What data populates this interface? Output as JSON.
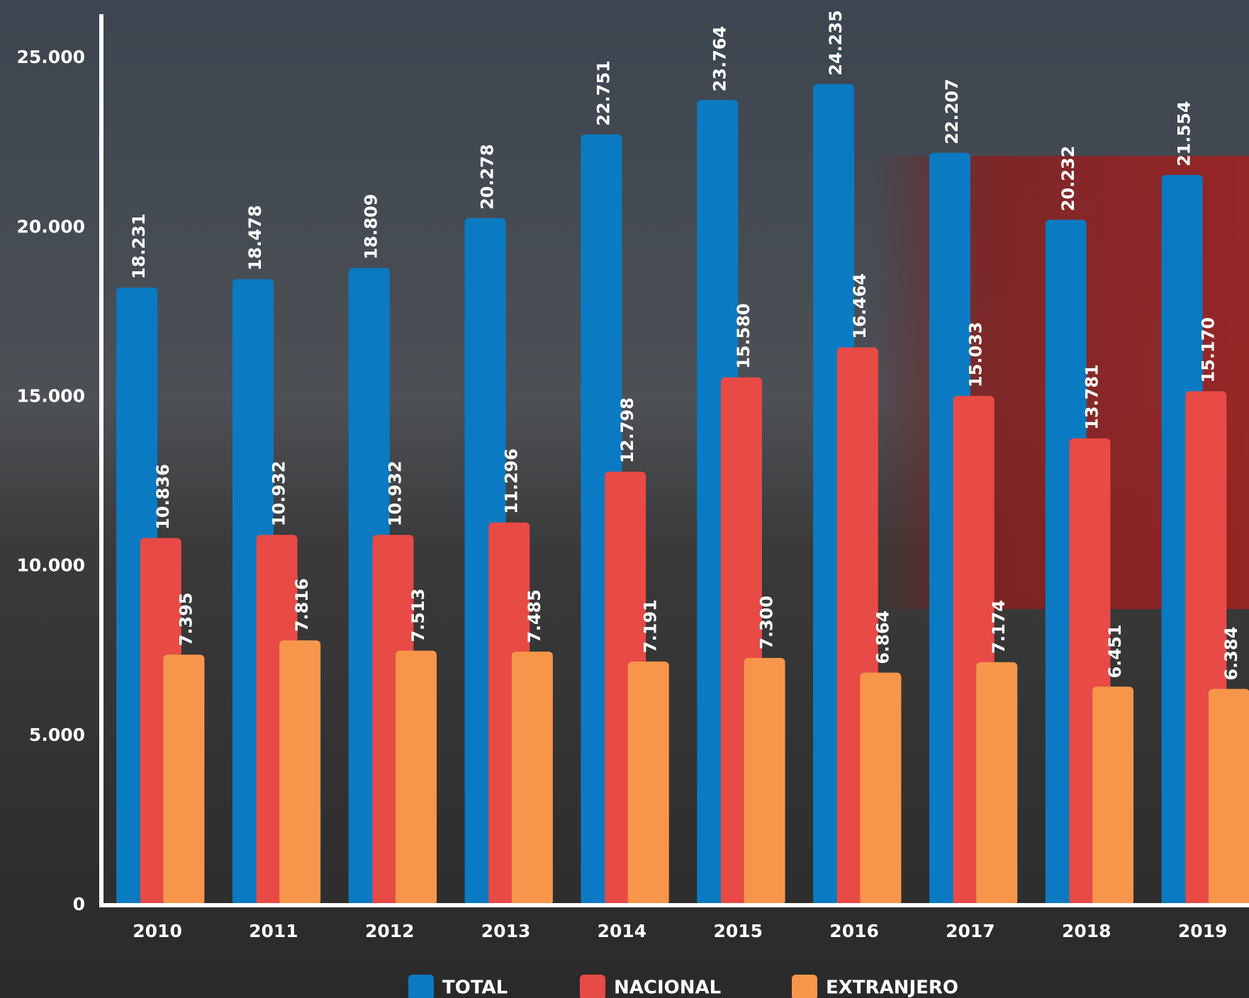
{
  "chart_data": {
    "type": "bar",
    "categories": [
      "2010",
      "2011",
      "2012",
      "2013",
      "2014",
      "2015",
      "2016",
      "2017",
      "2018",
      "2019"
    ],
    "series": [
      {
        "name": "TOTAL",
        "color": "#0a7bc2",
        "values": [
          18231,
          18478,
          18809,
          20278,
          22751,
          23764,
          24235,
          22207,
          20232,
          21554
        ],
        "value_labels": [
          "18.231",
          "18.478",
          "18.809",
          "20.278",
          "22.751",
          "23.764",
          "24.235",
          "22.207",
          "20.232",
          "21.554"
        ]
      },
      {
        "name": "NACIONAL",
        "color": "#e84a46",
        "values": [
          10836,
          10932,
          10932,
          11296,
          12798,
          15580,
          16464,
          15033,
          13781,
          15170
        ],
        "value_labels": [
          "10.836",
          "10.932",
          "10.932",
          "11.296",
          "12.798",
          "15.580",
          "16.464",
          "15.033",
          "13.781",
          "15.170"
        ]
      },
      {
        "name": "EXTRANJERO",
        "color": "#f7964b",
        "values": [
          7395,
          7816,
          7513,
          7485,
          7191,
          7300,
          6864,
          7174,
          6451,
          6384
        ],
        "value_labels": [
          "7.395",
          "7.816",
          "7.513",
          "7.485",
          "7.191",
          "7.300",
          "6.864",
          "7.174",
          "6.451",
          "6.384"
        ]
      }
    ],
    "ylim": [
      0,
      26300
    ],
    "yticks": [
      0,
      {
        "value": 5000,
        "label": "5.000"
      },
      {
        "value": 10000,
        "label": "10.000"
      },
      {
        "value": 15000,
        "label": "15.000"
      },
      {
        "value": 20000,
        "label": "20.000"
      },
      {
        "value": 25000,
        "label": "25.000"
      }
    ],
    "legend": "bottom"
  }
}
